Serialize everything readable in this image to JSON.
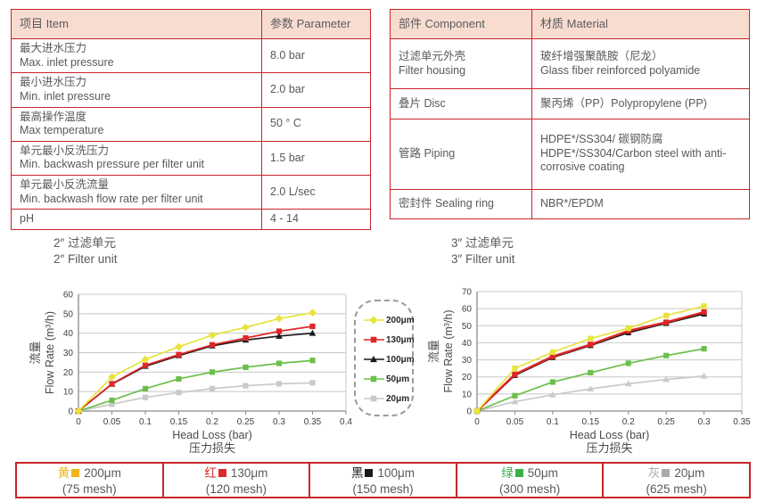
{
  "tables": {
    "parameters": {
      "headers": [
        "项目 Item",
        "参数 Parameter"
      ],
      "rows": [
        {
          "zh": "最大进水压力",
          "en": "Max. inlet pressure",
          "value": "8.0 bar"
        },
        {
          "zh": "最小进水压力",
          "en": "Min. inlet pressure",
          "value": "2.0 bar"
        },
        {
          "zh": "最高操作温度",
          "en": "Max temperature",
          "value": "50 ° C"
        },
        {
          "zh": "单元最小反洗压力",
          "en": "Min. backwash pressure per filter unit",
          "value": "1.5 bar"
        },
        {
          "zh": "单元最小反洗流量",
          "en": "Min. backwash flow rate per filter unit",
          "value": "2.0 L/sec"
        },
        {
          "zh": "pH",
          "en": "",
          "value": "4 - 14"
        }
      ]
    },
    "materials": {
      "headers": [
        "部件 Component",
        "材质 Material"
      ],
      "rows": [
        {
          "component_zh": "过滤单元外壳",
          "component_en": "Filter housing",
          "material_zh": "玻纤增强聚酰胺（尼龙）",
          "material_en": "Glass fiber reinforced polyamide"
        },
        {
          "component_zh": "叠片 Disc",
          "component_en": "",
          "material_zh": "聚丙烯（PP）Polypropylene (PP)",
          "material_en": ""
        },
        {
          "component_zh": "管路 Piping",
          "component_en": "",
          "material_zh": "HDPE*/SS304/ 碳钢防腐",
          "material_en": "HDPE*/SS304/Carbon steel with anti-corrosive coating"
        },
        {
          "component_zh": "密封件 Sealing ring",
          "component_en": "",
          "material_zh": "NBR*/EPDM",
          "material_en": ""
        }
      ]
    }
  },
  "chart_data": [
    {
      "type": "line",
      "title_zh": "2″ 过滤单元",
      "title_en": "2″ Filter unit",
      "xlabel": "Head Loss (bar)",
      "xlabel_zh": "压力损失",
      "ylabel_zh": "流量",
      "ylabel_en": "Flow Rate (m³/h)",
      "xlim": [
        0,
        0.4
      ],
      "ylim": [
        0,
        60
      ],
      "xticks": [
        0,
        0.05,
        0.1,
        0.15,
        0.2,
        0.25,
        0.3,
        0.35,
        0.4
      ],
      "yticks": [
        0,
        10,
        20,
        30,
        40,
        50,
        60
      ],
      "grid": "horizontal",
      "x": [
        0,
        0.05,
        0.1,
        0.15,
        0.2,
        0.25,
        0.3,
        0.35
      ],
      "series": [
        {
          "name": "200μm",
          "color": "#e7e43c",
          "marker": "diamond",
          "lw": 1.7,
          "values": [
            0,
            17.5,
            26.5,
            33,
            39,
            43,
            47.5,
            50.5
          ]
        },
        {
          "name": "130μm",
          "color": "#e02728",
          "marker": "square",
          "lw": 1.7,
          "values": [
            0,
            14,
            23.5,
            29,
            34,
            37.5,
            41,
            43.5
          ]
        },
        {
          "name": "100μm",
          "color": "#1a1a1a",
          "marker": "triangle",
          "lw": 1.7,
          "values": [
            0,
            13.8,
            23,
            28.5,
            33.5,
            36.5,
            38.5,
            40
          ]
        },
        {
          "name": "50μm",
          "color": "#6cbf4b",
          "marker": "square",
          "lw": 1.7,
          "values": [
            0,
            5.5,
            11.5,
            16.5,
            20,
            22.5,
            24.5,
            26
          ]
        },
        {
          "name": "20μm",
          "color": "#c9cacb",
          "marker": "square",
          "lw": 1.7,
          "values": [
            0,
            3.5,
            7,
            9.5,
            11.5,
            13,
            14,
            14.5
          ]
        }
      ]
    },
    {
      "type": "line",
      "title_zh": "3″ 过滤单元",
      "title_en": "3″ Filter unit",
      "xlabel": "Head Loss (bar)",
      "xlabel_zh": "压力损失",
      "ylabel_zh": "流量",
      "ylabel_en": "Flow Rate (m³/h)",
      "xlim": [
        0,
        0.35
      ],
      "ylim": [
        0,
        70
      ],
      "xticks": [
        0,
        0.05,
        0.1,
        0.15,
        0.2,
        0.25,
        0.3,
        0.35
      ],
      "yticks": [
        0,
        10,
        20,
        30,
        40,
        50,
        60,
        70
      ],
      "grid": "horizontal",
      "x": [
        0,
        0.05,
        0.1,
        0.15,
        0.2,
        0.25,
        0.3
      ],
      "series": [
        {
          "name": "200μm",
          "color": "#e7e43c",
          "marker": "square",
          "lw": 1.7,
          "values": [
            0,
            25,
            34.5,
            42.5,
            48.5,
            56,
            61.5
          ]
        },
        {
          "name": "130μm",
          "color": "#e02728",
          "marker": "square",
          "lw": 2.4,
          "values": [
            0,
            21.5,
            32,
            39,
            47,
            52,
            58
          ]
        },
        {
          "name": "100μm",
          "color": "#1a1a1a",
          "marker": "square",
          "lw": 2.0,
          "values": [
            0,
            21,
            31.5,
            38.5,
            46,
            51.5,
            57
          ]
        },
        {
          "name": "50μm",
          "color": "#6cbf4b",
          "marker": "square",
          "lw": 1.7,
          "values": [
            0,
            9,
            17,
            22.5,
            28,
            32.5,
            36.5
          ]
        },
        {
          "name": "20μm",
          "color": "#c9cacb",
          "marker": "triangle",
          "lw": 1.7,
          "values": [
            0,
            5.5,
            9.5,
            13,
            16,
            18.5,
            20.5
          ]
        }
      ]
    }
  ],
  "chart_legend": {
    "entries": [
      {
        "label": "200μm",
        "color": "#e7e43c",
        "marker": "diamond"
      },
      {
        "label": "130μm",
        "color": "#e02728",
        "marker": "square"
      },
      {
        "label": "100μm",
        "color": "#1a1a1a",
        "marker": "triangle"
      },
      {
        "label": "50μm",
        "color": "#6cbf4b",
        "marker": "square"
      },
      {
        "label": "20μm",
        "color": "#c9cacb",
        "marker": "square"
      }
    ]
  },
  "bottom_legend": [
    {
      "color_zh": "黄",
      "color": "#f0b416",
      "size": "200μm",
      "mesh": "(75 mesh)"
    },
    {
      "color_zh": "红",
      "color": "#e02728",
      "size": "130μm",
      "mesh": "(120 mesh)"
    },
    {
      "color_zh": "黑",
      "color": "#1a1a1a",
      "size": "100μm",
      "mesh": "(150 mesh)"
    },
    {
      "color_zh": "绿",
      "color": "#3bae49",
      "size": "50μm",
      "mesh": "(300 mesh)"
    },
    {
      "color_zh": "灰",
      "color": "#a8aaad",
      "size": "20μm",
      "mesh": "(625 mesh)"
    }
  ],
  "colors": {
    "table_border": "#c9242b",
    "table_header_bg": "#f8dcd0",
    "text": "#58595b"
  }
}
